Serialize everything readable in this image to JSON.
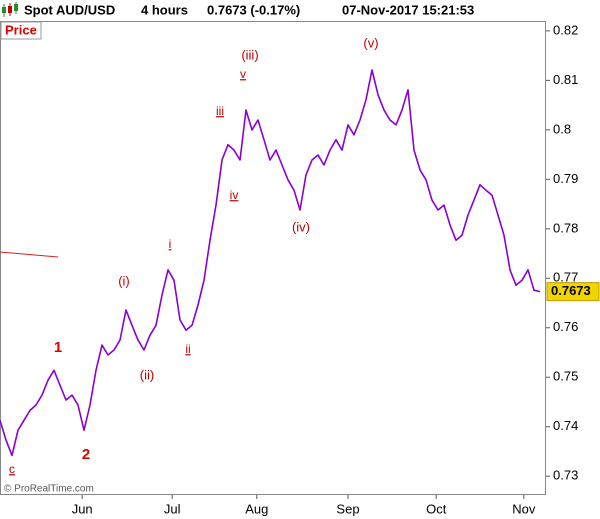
{
  "chart_data": {
    "type": "line",
    "title": "Spot AUD/USD",
    "timeframe": "4 hours",
    "quote": "0.7673 (-0.17%)",
    "timestamp": "07-Nov-2017 15:21:53",
    "panel_label": "Price",
    "watermark": "© ProRealTime.com",
    "color": "#8a00d4",
    "values": [
      0.7413,
      0.7373,
      0.7342,
      0.7393,
      0.7413,
      0.7433,
      0.7444,
      0.7464,
      0.7494,
      0.7514,
      0.7484,
      0.7454,
      0.7464,
      0.7444,
      0.7393,
      0.7444,
      0.7514,
      0.7565,
      0.7545,
      0.7555,
      0.7575,
      0.7636,
      0.7605,
      0.7575,
      0.7555,
      0.7585,
      0.7605,
      0.7666,
      0.7717,
      0.7696,
      0.7616,
      0.7595,
      0.7605,
      0.7646,
      0.7696,
      0.7777,
      0.7848,
      0.7939,
      0.797,
      0.7959,
      0.7939,
      0.804,
      0.8,
      0.802,
      0.798,
      0.7939,
      0.7959,
      0.7929,
      0.7899,
      0.7878,
      0.7838,
      0.7909,
      0.7939,
      0.7949,
      0.7929,
      0.7959,
      0.798,
      0.7959,
      0.801,
      0.799,
      0.802,
      0.8061,
      0.8121,
      0.8071,
      0.804,
      0.802,
      0.801,
      0.804,
      0.8081,
      0.7959,
      0.7919,
      0.7899,
      0.7858,
      0.7838,
      0.7848,
      0.7808,
      0.7777,
      0.7787,
      0.7828,
      0.7858,
      0.7889,
      0.7878,
      0.7868,
      0.7828,
      0.7787,
      0.7717,
      0.7686,
      0.7696,
      0.7717,
      0.7676,
      0.7673
    ],
    "last_price": 0.7673,
    "xlim": [
      0,
      91
    ],
    "xticks": [
      {
        "value": 13.7,
        "label": "Jun"
      },
      {
        "value": 28.7,
        "label": "Jul"
      },
      {
        "value": 42.8,
        "label": "Aug"
      },
      {
        "value": 58,
        "label": "Sep"
      },
      {
        "value": 72.7,
        "label": "Oct"
      },
      {
        "value": 87.3,
        "label": "Nov"
      }
    ],
    "ylim": [
      0.7262,
      0.8218
    ],
    "yticks": [
      0.73,
      0.74,
      0.75,
      0.76,
      0.77,
      0.78,
      0.79,
      0.8,
      0.81,
      0.82
    ],
    "annotations": [
      "c",
      "1",
      "2",
      "(i)",
      "(ii)",
      "i",
      "ii",
      "iii",
      "iv",
      "v",
      "(iii)",
      "(iv)",
      "(v)"
    ]
  }
}
